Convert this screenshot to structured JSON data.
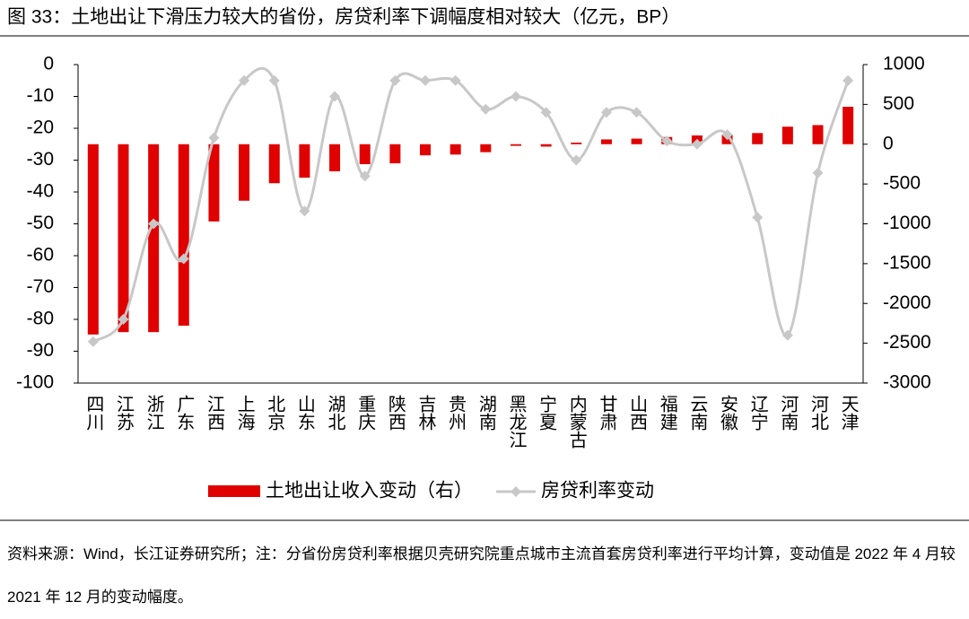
{
  "chart_data": {
    "type": "bar-line",
    "title": "图 33：土地出让下滑压力较大的省份，房贷利率下调幅度相对较大（亿元，BP）",
    "categories": [
      "四川",
      "江苏",
      "浙江",
      "广东",
      "江西",
      "上海",
      "北京",
      "山东",
      "湖北",
      "重庆",
      "陕西",
      "吉林",
      "贵州",
      "湖南",
      "黑龙江",
      "宁夏",
      "内蒙古",
      "甘肃",
      "山西",
      "福建",
      "云南",
      "安徽",
      "辽宁",
      "河南",
      "河北",
      "天津"
    ],
    "series": [
      {
        "name": "土地出让收入变动（右）",
        "kind": "bar",
        "axis": "y2",
        "color": "#e00000",
        "values": [
          -2390,
          -2360,
          -2360,
          -2280,
          -970,
          -710,
          -490,
          -420,
          -340,
          -250,
          -240,
          -140,
          -130,
          -100,
          -20,
          -30,
          20,
          60,
          70,
          90,
          110,
          120,
          140,
          220,
          240,
          470
        ]
      },
      {
        "name": "房贷利率变动",
        "kind": "line",
        "color": "#c8c8c8",
        "values": [
          -87,
          -80,
          -50,
          -61,
          -23,
          -5,
          -5,
          -46,
          -10,
          -35,
          -5,
          -5,
          -5,
          -14,
          -10,
          -15,
          -30,
          -15,
          -15,
          -24,
          -25,
          -22,
          -48,
          -85,
          -34,
          -5
        ]
      }
    ],
    "ylim": [
      -100,
      0
    ],
    "yticks": [
      0,
      -10,
      -20,
      -30,
      -40,
      -50,
      -60,
      -70,
      -80,
      -90,
      -100
    ],
    "y2lim": [
      -3000,
      1000
    ],
    "y2ticks": [
      1000,
      500,
      0,
      -500,
      -1000,
      -1500,
      -2000,
      -2500,
      -3000
    ],
    "legend": "bottom",
    "source": "资料来源：Wind，长江证券研究所；注：分省份房贷利率根据贝壳研究院重点城市主流首套房贷利率进行平均计算，变动值是 2022 年 4 月较 2021 年 12 月的变动幅度。"
  }
}
